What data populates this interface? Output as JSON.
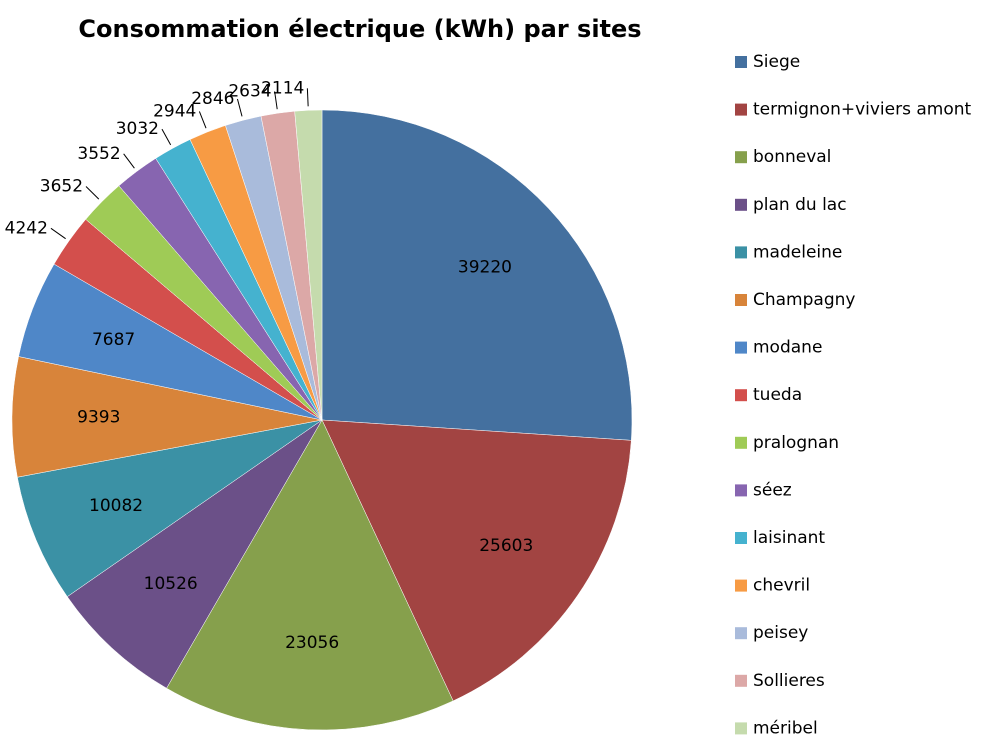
{
  "chart_data": {
    "type": "pie",
    "title": "Consommation électrique (kWh) par sites",
    "categories": [
      "Siege",
      "termignon+viviers amont",
      "bonneval",
      "plan du lac",
      "madeleine",
      "Champagny",
      "modane",
      "tueda",
      "pralognan",
      "séez",
      "laisinant",
      "chevril",
      "peisey",
      "Sollieres",
      "méribel"
    ],
    "values": [
      39220,
      25603,
      23056,
      10526,
      10082,
      9393,
      7687,
      4242,
      3652,
      3552,
      3032,
      2944,
      2846,
      2634,
      2114
    ],
    "colors": [
      "#44709f",
      "#a24442",
      "#86a04c",
      "#6b5088",
      "#3b91a5",
      "#d8843a",
      "#4f87c8",
      "#d34f4c",
      "#9fcb56",
      "#8765b0",
      "#45b2cf",
      "#f79b44",
      "#a9bbdb",
      "#dca8a7",
      "#c5dbad"
    ],
    "legend": "right"
  }
}
